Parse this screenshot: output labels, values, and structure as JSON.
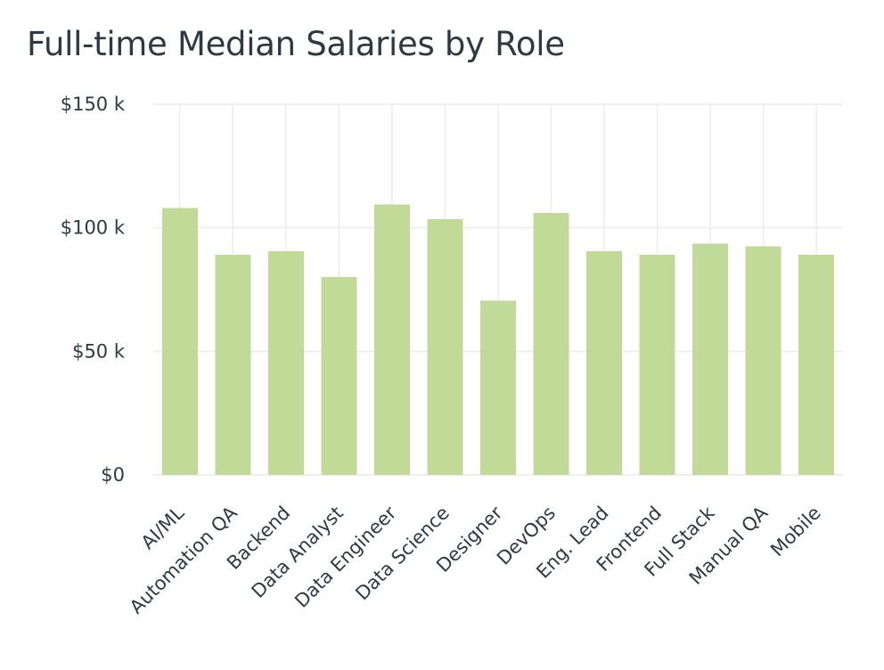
{
  "chart_data": {
    "type": "bar",
    "title": "Full-time Median Salaries by Role",
    "xlabel": "",
    "ylabel": "",
    "categories": [
      "AI/ML",
      "Automation QA",
      "Backend",
      "Data Analyst",
      "Data Engineer",
      "Data Science",
      "Designer",
      "DevOps",
      "Eng. Lead",
      "Frontend",
      "Full Stack",
      "Manual QA",
      "Mobile"
    ],
    "values": [
      108000,
      89000,
      90500,
      80000,
      109500,
      103500,
      70500,
      106000,
      90500,
      89000,
      93500,
      92500,
      89000
    ],
    "ylim": [
      0,
      150000
    ],
    "yticks": [
      {
        "value": 0,
        "label": "$0"
      },
      {
        "value": 50000,
        "label": "$50 k"
      },
      {
        "value": 100000,
        "label": "$100 k"
      },
      {
        "value": 150000,
        "label": "$150 k"
      }
    ],
    "grid": true,
    "bar_color": "#c2da98",
    "grid_color": "#ececec",
    "text_color": "#2d3a44"
  }
}
